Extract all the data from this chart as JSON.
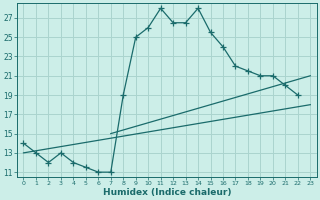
{
  "xlabel": "Humidex (Indice chaleur)",
  "bg_color": "#cceee8",
  "grid_color": "#aad4ce",
  "line_color": "#1a6b6b",
  "xlim": [
    -0.5,
    23.5
  ],
  "ylim": [
    10.5,
    28.5
  ],
  "yticks": [
    11,
    13,
    15,
    17,
    19,
    21,
    23,
    25,
    27
  ],
  "xticks": [
    0,
    1,
    2,
    3,
    4,
    5,
    6,
    7,
    8,
    9,
    10,
    11,
    12,
    13,
    14,
    15,
    16,
    17,
    18,
    19,
    20,
    21,
    22,
    23
  ],
  "curve1_x": [
    0,
    1,
    2,
    3,
    4,
    5,
    6,
    7,
    8,
    9,
    10,
    11,
    12,
    13,
    14,
    15,
    16,
    17,
    18,
    19,
    20,
    21,
    22
  ],
  "curve1_y": [
    14,
    13,
    12,
    13,
    12,
    11.5,
    11,
    11,
    19,
    25,
    26,
    28,
    26.5,
    26.5,
    28,
    25.5,
    24,
    22,
    21.5,
    21,
    21,
    20,
    19
  ],
  "line2_x": [
    0,
    23
  ],
  "line2_y": [
    13,
    18
  ],
  "line3_x": [
    7,
    23
  ],
  "line3_y": [
    15,
    21
  ]
}
